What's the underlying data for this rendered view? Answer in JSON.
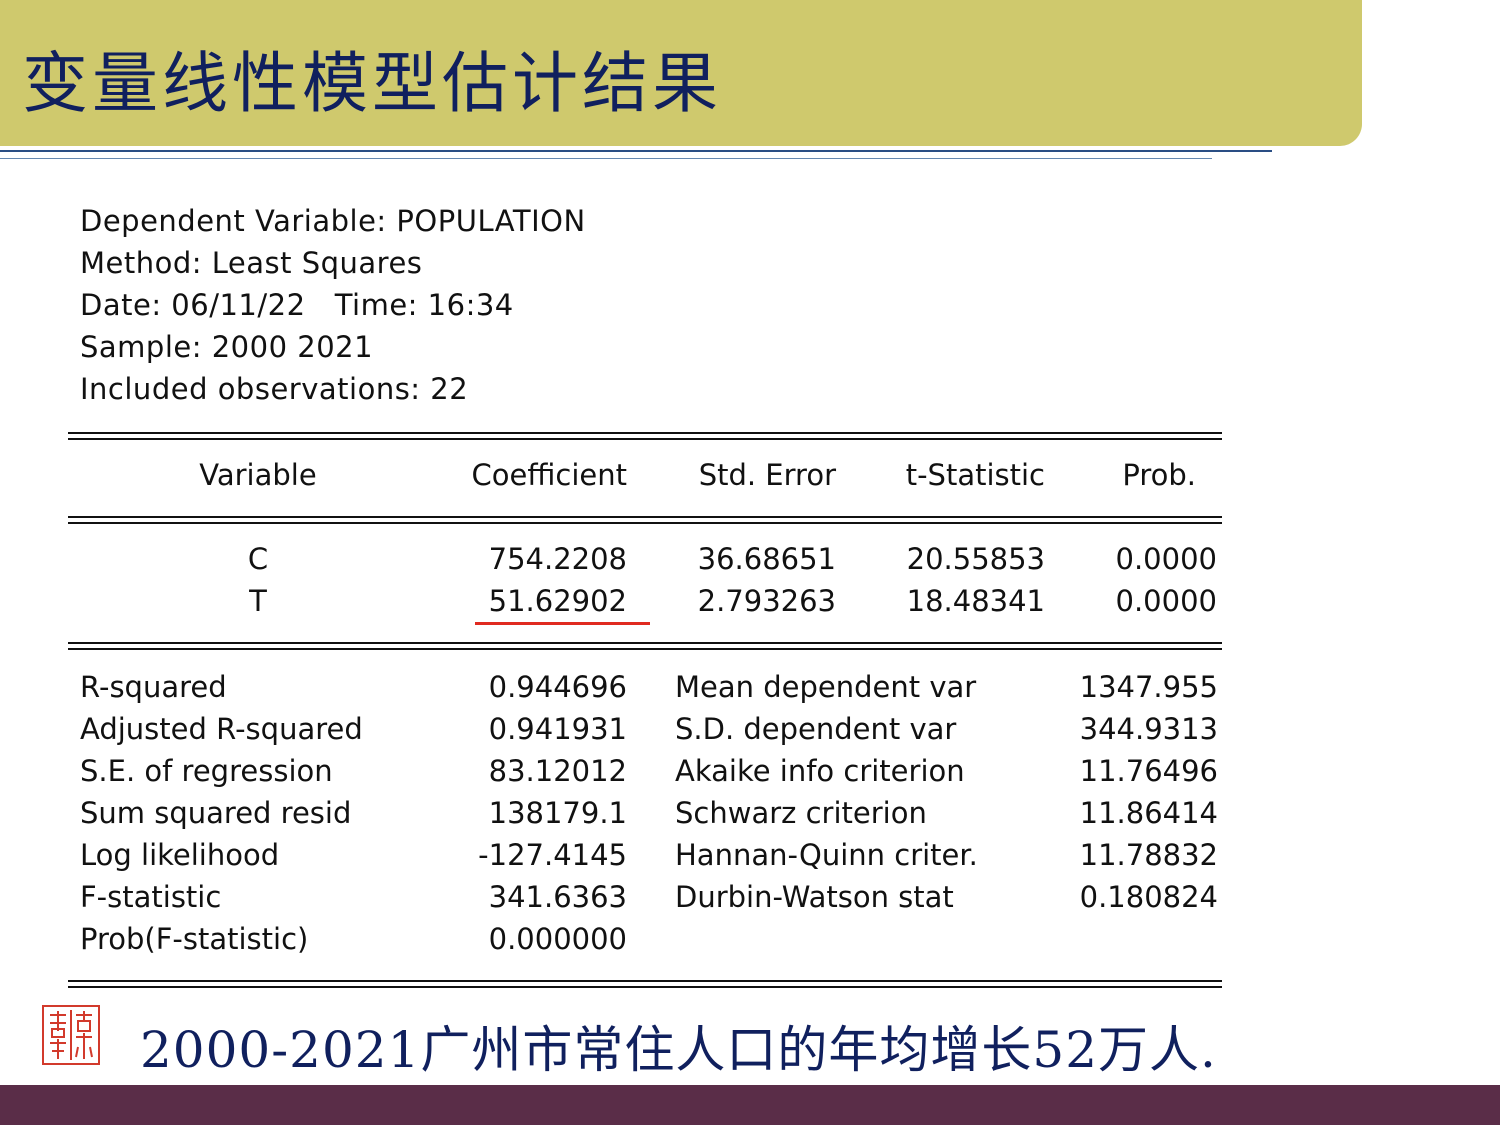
{
  "slide": {
    "title": "变量线性模型估计结果",
    "footer_note": "2000-2021广州市常住人口的年均增长52万人.",
    "seal_text": "章子",
    "colors": {
      "title_banner": "#cfc96d",
      "title_text": "#10205e",
      "bottom_bar": "#5a2d48",
      "highlight": "#e02a20"
    }
  },
  "regression": {
    "header": {
      "dependent": "Dependent Variable: POPULATION",
      "method": "Method: Least Squares",
      "datetime": "Date: 06/11/22   Time: 16:34",
      "sample": "Sample: 2000 2021",
      "observations": "Included observations: 22"
    },
    "columns": [
      "Variable",
      "Coefficient",
      "Std. Error",
      "t-Statistic",
      "Prob."
    ],
    "rows": [
      {
        "variable": "C",
        "coefficient": "754.2208",
        "std_error": "36.68651",
        "t_stat": "20.55853",
        "prob": "0.0000"
      },
      {
        "variable": "T",
        "coefficient": "51.62902",
        "std_error": "2.793263",
        "t_stat": "18.48341",
        "prob": "0.0000"
      }
    ],
    "highlighted": "T coefficient",
    "stats_left": [
      {
        "label": "R-squared",
        "value": "0.944696"
      },
      {
        "label": "Adjusted R-squared",
        "value": "0.941931"
      },
      {
        "label": "S.E. of regression",
        "value": "83.12012"
      },
      {
        "label": "Sum squared resid",
        "value": "138179.1"
      },
      {
        "label": "Log likelihood",
        "value": "-127.4145"
      },
      {
        "label": "F-statistic",
        "value": "341.6363"
      },
      {
        "label": "Prob(F-statistic)",
        "value": "0.000000"
      }
    ],
    "stats_right": [
      {
        "label": "Mean dependent var",
        "value": "1347.955"
      },
      {
        "label": "S.D. dependent var",
        "value": "344.9313"
      },
      {
        "label": "Akaike info criterion",
        "value": "11.76496"
      },
      {
        "label": "Schwarz criterion",
        "value": "11.86414"
      },
      {
        "label": "Hannan-Quinn criter.",
        "value": "11.78832"
      },
      {
        "label": "Durbin-Watson stat",
        "value": "0.180824"
      }
    ]
  }
}
